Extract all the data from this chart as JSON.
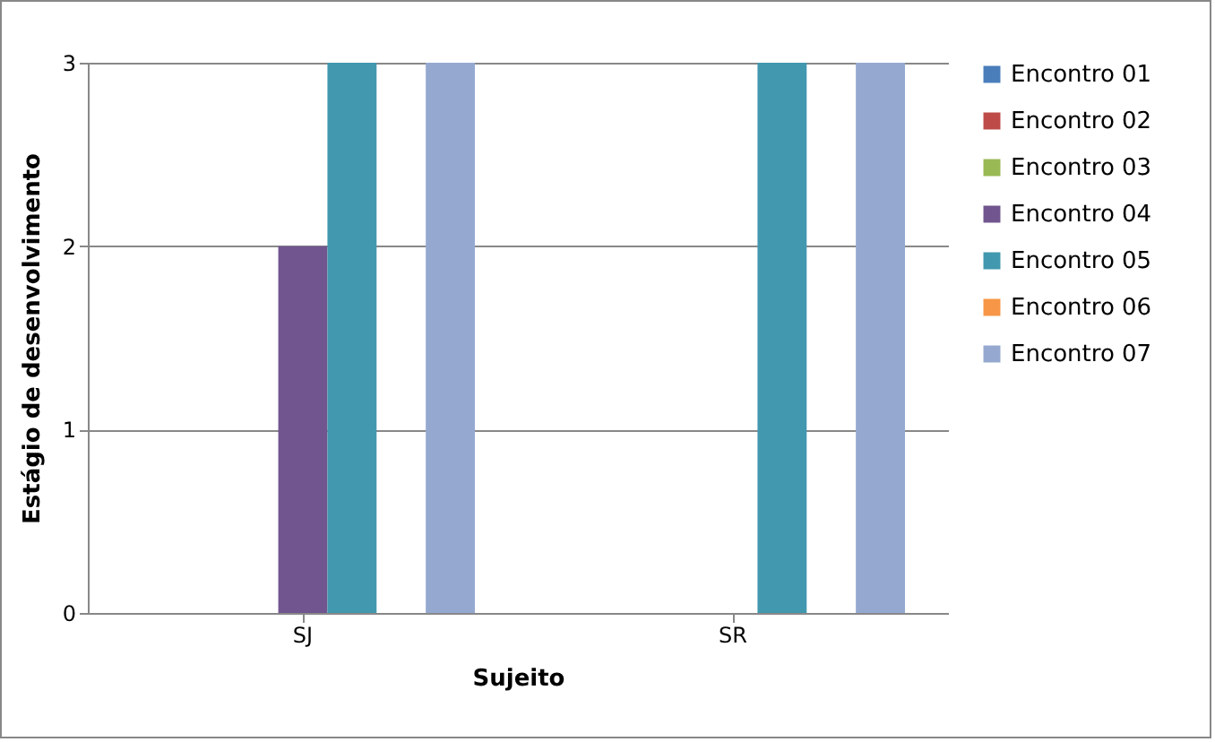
{
  "chart_data": {
    "type": "bar",
    "xlabel": "Sujeito",
    "ylabel": "Estágio de desenvolvimento",
    "categories": [
      "SJ",
      "SR"
    ],
    "series": [
      {
        "name": "Encontro 01",
        "color": "#4a7ebb",
        "values": [
          0,
          0
        ]
      },
      {
        "name": "Encontro 02",
        "color": "#be4b48",
        "values": [
          0,
          0
        ]
      },
      {
        "name": "Encontro 03",
        "color": "#98b954",
        "values": [
          0,
          0
        ]
      },
      {
        "name": "Encontro 04",
        "color": "#71558f",
        "values": [
          2,
          0
        ]
      },
      {
        "name": "Encontro 05",
        "color": "#4198af",
        "values": [
          3,
          3
        ]
      },
      {
        "name": "Encontro 06",
        "color": "#f79646",
        "values": [
          0,
          0
        ]
      },
      {
        "name": "Encontro 07",
        "color": "#95a9d0",
        "values": [
          3,
          3
        ]
      }
    ],
    "ylim": [
      0,
      3
    ],
    "yticks": [
      0,
      1,
      2,
      3
    ],
    "grid": "y",
    "legend": "right"
  }
}
